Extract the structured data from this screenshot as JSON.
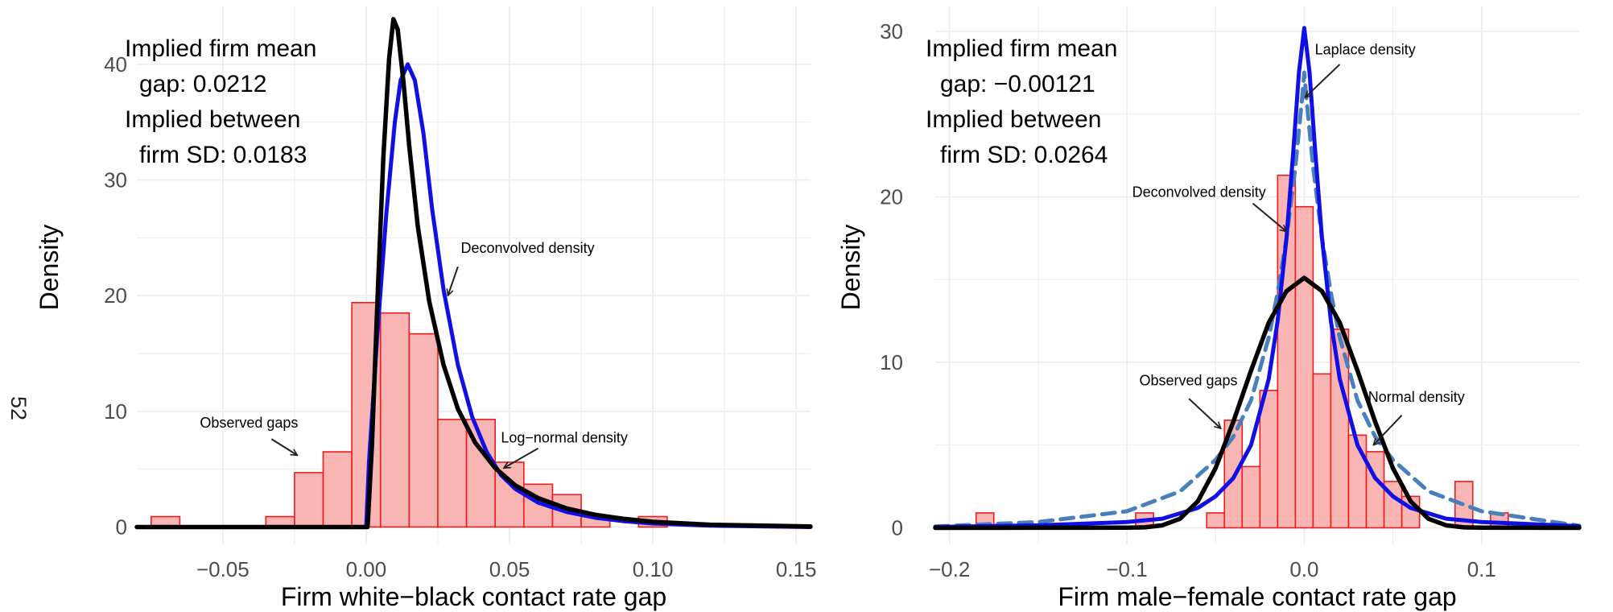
{
  "page_number": "52",
  "colors": {
    "hist_fill": "#f9b4b4",
    "hist_stroke": "#ee1c1c",
    "blue": "#1010e6",
    "black": "#000000",
    "dashed": "#4a7fbd",
    "grid": "#ebebeb",
    "tick_text": "#4d4d4d"
  },
  "chart_data": [
    {
      "type": "histogram",
      "xlabel": "Firm white−black contact rate gap",
      "ylabel": "Density",
      "xlim": [
        -0.08,
        0.155
      ],
      "ylim": [
        -1.5,
        45
      ],
      "x_ticks": [
        -0.05,
        0.0,
        0.05,
        0.1,
        0.15
      ],
      "x_tick_labels": [
        "−0.05",
        "0.00",
        "0.05",
        "0.10",
        "0.15"
      ],
      "y_ticks": [
        0,
        10,
        20,
        30,
        40
      ],
      "y_tick_labels": [
        "0",
        "10",
        "20",
        "30",
        "40"
      ],
      "grid": true,
      "bin_width": 0.01,
      "bins": [
        {
          "start": -0.075,
          "density": 0.9
        },
        {
          "start": -0.035,
          "density": 0.9
        },
        {
          "start": -0.025,
          "density": 4.7
        },
        {
          "start": -0.015,
          "density": 6.5
        },
        {
          "start": -0.005,
          "density": 19.4
        },
        {
          "start": 0.005,
          "density": 18.5
        },
        {
          "start": 0.015,
          "density": 16.7
        },
        {
          "start": 0.025,
          "density": 9.3
        },
        {
          "start": 0.035,
          "density": 9.3
        },
        {
          "start": 0.045,
          "density": 5.6
        },
        {
          "start": 0.055,
          "density": 3.7
        },
        {
          "start": 0.065,
          "density": 2.8
        },
        {
          "start": 0.075,
          "density": 0.9
        },
        {
          "start": 0.095,
          "density": 0.9
        }
      ],
      "curves": [
        {
          "label": "Deconvolved density",
          "color": "#1010e6",
          "dash": false,
          "points": [
            [
              -0.08,
              0
            ],
            [
              0.0,
              0
            ],
            [
              0.001,
              5.7
            ],
            [
              0.004,
              17
            ],
            [
              0.007,
              27
            ],
            [
              0.01,
              35
            ],
            [
              0.012,
              38.6
            ],
            [
              0.0145,
              40
            ],
            [
              0.017,
              38.6
            ],
            [
              0.02,
              34
            ],
            [
              0.023,
              27.5
            ],
            [
              0.027,
              20.5
            ],
            [
              0.032,
              14
            ],
            [
              0.037,
              9.5
            ],
            [
              0.042,
              6.5
            ],
            [
              0.047,
              4.5
            ],
            [
              0.052,
              3.3
            ],
            [
              0.06,
              2.1
            ],
            [
              0.07,
              1.3
            ],
            [
              0.08,
              0.8
            ],
            [
              0.09,
              0.5
            ],
            [
              0.1,
              0.3
            ],
            [
              0.12,
              0.12
            ],
            [
              0.155,
              0
            ]
          ]
        },
        {
          "label": "Log−normal density",
          "color": "#000000",
          "dash": false,
          "points": [
            [
              -0.08,
              0
            ],
            [
              0.0005,
              0
            ],
            [
              0.002,
              7
            ],
            [
              0.004,
              20
            ],
            [
              0.006,
              32
            ],
            [
              0.008,
              40.5
            ],
            [
              0.0095,
              43.9
            ],
            [
              0.011,
              43
            ],
            [
              0.013,
              38.5
            ],
            [
              0.015,
              33
            ],
            [
              0.018,
              26
            ],
            [
              0.022,
              19.5
            ],
            [
              0.027,
              14
            ],
            [
              0.032,
              10.2
            ],
            [
              0.038,
              7.3
            ],
            [
              0.045,
              5.1
            ],
            [
              0.052,
              3.6
            ],
            [
              0.06,
              2.5
            ],
            [
              0.07,
              1.6
            ],
            [
              0.08,
              1.05
            ],
            [
              0.09,
              0.7
            ],
            [
              0.1,
              0.45
            ],
            [
              0.12,
              0.2
            ],
            [
              0.155,
              0.05
            ]
          ]
        }
      ],
      "annotations": [
        {
          "lines": [
            "Implied firm mean",
            "  gap: 0.0212",
            "Implied between",
            "  firm SD: 0.0183"
          ],
          "size": "large",
          "placement": "top-left"
        },
        {
          "text": "Deconvolved density",
          "label_at": [
            0.033,
            23.7
          ],
          "arrow_from": [
            0.032,
            22.5
          ],
          "arrow_to": [
            0.0285,
            20.0
          ]
        },
        {
          "text": "Log−normal density",
          "label_at": [
            0.047,
            7.3
          ],
          "arrow_from": [
            0.06,
            6.8
          ],
          "arrow_to": [
            0.048,
            5.1
          ]
        },
        {
          "text": "Observed gaps",
          "label_at": [
            -0.058,
            8.6
          ],
          "arrow_from": [
            -0.033,
            7.6
          ],
          "arrow_to": [
            -0.024,
            6.2
          ]
        }
      ]
    },
    {
      "type": "histogram",
      "xlabel": "Firm male−female contact rate gap",
      "ylabel": "Density",
      "xlim": [
        -0.208,
        0.155
      ],
      "ylim": [
        -1.0,
        31.5
      ],
      "x_ticks": [
        -0.2,
        -0.1,
        0.0,
        0.1
      ],
      "x_tick_labels": [
        "−0.2",
        "−0.1",
        "0.0",
        "0.1"
      ],
      "y_ticks": [
        0,
        10,
        20,
        30
      ],
      "y_tick_labels": [
        "0",
        "10",
        "20",
        "30"
      ],
      "grid": true,
      "bin_width": 0.01,
      "bins": [
        {
          "start": -0.185,
          "density": 0.9
        },
        {
          "start": -0.095,
          "density": 0.9
        },
        {
          "start": -0.055,
          "density": 0.9
        },
        {
          "start": -0.045,
          "density": 6.5
        },
        {
          "start": -0.035,
          "density": 3.7
        },
        {
          "start": -0.025,
          "density": 8.3
        },
        {
          "start": -0.015,
          "density": 21.3
        },
        {
          "start": -0.005,
          "density": 19.4
        },
        {
          "start": 0.005,
          "density": 9.3
        },
        {
          "start": 0.015,
          "density": 12.0
        },
        {
          "start": 0.025,
          "density": 5.6
        },
        {
          "start": 0.035,
          "density": 4.6
        },
        {
          "start": 0.045,
          "density": 2.8
        },
        {
          "start": 0.055,
          "density": 1.9
        },
        {
          "start": 0.085,
          "density": 2.8
        },
        {
          "start": 0.105,
          "density": 0.9
        }
      ],
      "curves": [
        {
          "label": "Laplace density",
          "color": "#4a7fbd",
          "dash": true,
          "points": [
            [
              -0.208,
              0.08
            ],
            [
              -0.15,
              0.35
            ],
            [
              -0.1,
              1.0
            ],
            [
              -0.07,
              2.2
            ],
            [
              -0.05,
              4.1
            ],
            [
              -0.04,
              5.5
            ],
            [
              -0.03,
              7.7
            ],
            [
              -0.02,
              11.5
            ],
            [
              -0.015,
              14.2
            ],
            [
              -0.01,
              17.5
            ],
            [
              -0.005,
              21.8
            ],
            [
              -0.001,
              26.2
            ],
            [
              0.0,
              27.5
            ],
            [
              0.001,
              26.2
            ],
            [
              0.005,
              21.8
            ],
            [
              0.01,
              17.5
            ],
            [
              0.015,
              14.2
            ],
            [
              0.02,
              11.5
            ],
            [
              0.03,
              7.7
            ],
            [
              0.04,
              5.5
            ],
            [
              0.05,
              4.1
            ],
            [
              0.07,
              2.2
            ],
            [
              0.1,
              1.0
            ],
            [
              0.155,
              0.12
            ]
          ]
        },
        {
          "label": "Deconvolved density",
          "color": "#1010e6",
          "dash": false,
          "points": [
            [
              -0.208,
              0.05
            ],
            [
              -0.15,
              0.15
            ],
            [
              -0.1,
              0.35
            ],
            [
              -0.08,
              0.55
            ],
            [
              -0.06,
              1.2
            ],
            [
              -0.05,
              1.9
            ],
            [
              -0.04,
              3.0
            ],
            [
              -0.03,
              5.0
            ],
            [
              -0.02,
              9.0
            ],
            [
              -0.015,
              12.5
            ],
            [
              -0.01,
              17.5
            ],
            [
              -0.006,
              23
            ],
            [
              -0.003,
              27.5
            ],
            [
              0.0,
              30.2
            ],
            [
              0.003,
              27.5
            ],
            [
              0.006,
              23
            ],
            [
              0.01,
              17.5
            ],
            [
              0.015,
              12.5
            ],
            [
              0.02,
              9.0
            ],
            [
              0.03,
              5.0
            ],
            [
              0.04,
              3.0
            ],
            [
              0.05,
              1.9
            ],
            [
              0.06,
              1.2
            ],
            [
              0.08,
              0.55
            ],
            [
              0.1,
              0.35
            ],
            [
              0.155,
              0.1
            ]
          ]
        },
        {
          "label": "Normal density",
          "color": "#000000",
          "dash": false,
          "points": [
            [
              -0.208,
              0
            ],
            [
              -0.1,
              0.01
            ],
            [
              -0.09,
              0.03
            ],
            [
              -0.08,
              0.15
            ],
            [
              -0.07,
              0.55
            ],
            [
              -0.06,
              1.6
            ],
            [
              -0.05,
              3.6
            ],
            [
              -0.04,
              6.4
            ],
            [
              -0.03,
              9.5
            ],
            [
              -0.02,
              12.4
            ],
            [
              -0.01,
              14.3
            ],
            [
              0.0,
              15.1
            ],
            [
              0.01,
              14.3
            ],
            [
              0.02,
              12.4
            ],
            [
              0.03,
              9.5
            ],
            [
              0.04,
              6.4
            ],
            [
              0.05,
              3.6
            ],
            [
              0.06,
              1.6
            ],
            [
              0.07,
              0.55
            ],
            [
              0.08,
              0.15
            ],
            [
              0.09,
              0.03
            ],
            [
              0.1,
              0.01
            ],
            [
              0.155,
              0
            ]
          ]
        }
      ],
      "annotations": [
        {
          "lines": [
            "Implied firm mean",
            "  gap: −0.00121",
            "Implied between",
            "  firm SD: 0.0264"
          ],
          "size": "large",
          "placement": "top-left"
        },
        {
          "text": "Laplace density",
          "label_at": [
            0.006,
            28.6
          ],
          "arrow_from": [
            0.02,
            28.0
          ],
          "arrow_to": [
            0.0005,
            26.0
          ]
        },
        {
          "text": "Deconvolved density",
          "label_at": [
            -0.097,
            20.0
          ],
          "arrow_from": [
            -0.029,
            19.6
          ],
          "arrow_to": [
            -0.01,
            17.9
          ]
        },
        {
          "text": "Observed gaps",
          "label_at": [
            -0.093,
            8.6
          ],
          "arrow_from": [
            -0.065,
            7.8
          ],
          "arrow_to": [
            -0.047,
            6.0
          ]
        },
        {
          "text": "Normal density",
          "label_at": [
            0.036,
            7.6
          ],
          "arrow_from": [
            0.055,
            6.8
          ],
          "arrow_to": [
            0.039,
            5.0
          ]
        }
      ]
    }
  ]
}
